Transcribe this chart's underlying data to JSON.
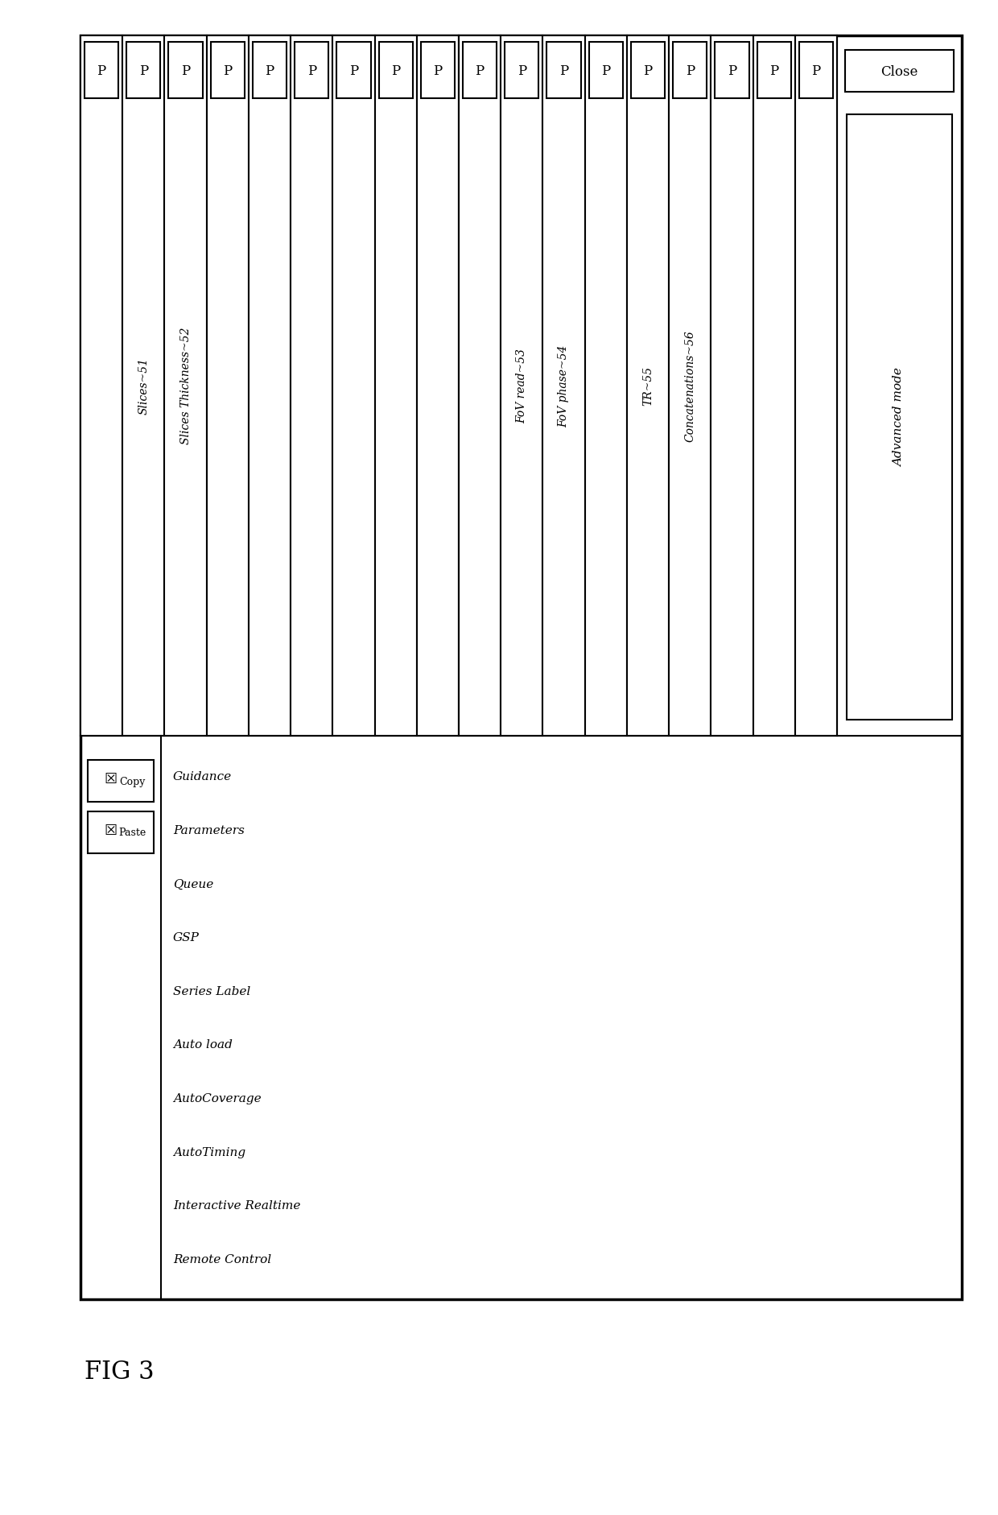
{
  "fig_width": 12.4,
  "fig_height": 18.83,
  "bg_color": "#ffffff",
  "row_labels": [
    "Guidance",
    "Parameters",
    "Queue",
    "GSP",
    "Series Label",
    "Auto load",
    "AutoCoverage",
    "AutoTiming",
    "Interactive Realtime",
    "Remote Control"
  ],
  "group1_labels": [
    "",
    "Slices~51",
    "Slices Thickness~52",
    "",
    "",
    "",
    "",
    "",
    ""
  ],
  "group2_labels": [
    "",
    "FoV read~53",
    "FoV phase~54",
    "",
    "TR~55",
    "Concatenations~56",
    "",
    "",
    ""
  ],
  "p_label": "P",
  "advanced_mode_text": "Advanced mode",
  "close_text": "Close",
  "copy_text": "Copy",
  "paste_text": "Paste",
  "fig3_text": "FIG 3"
}
